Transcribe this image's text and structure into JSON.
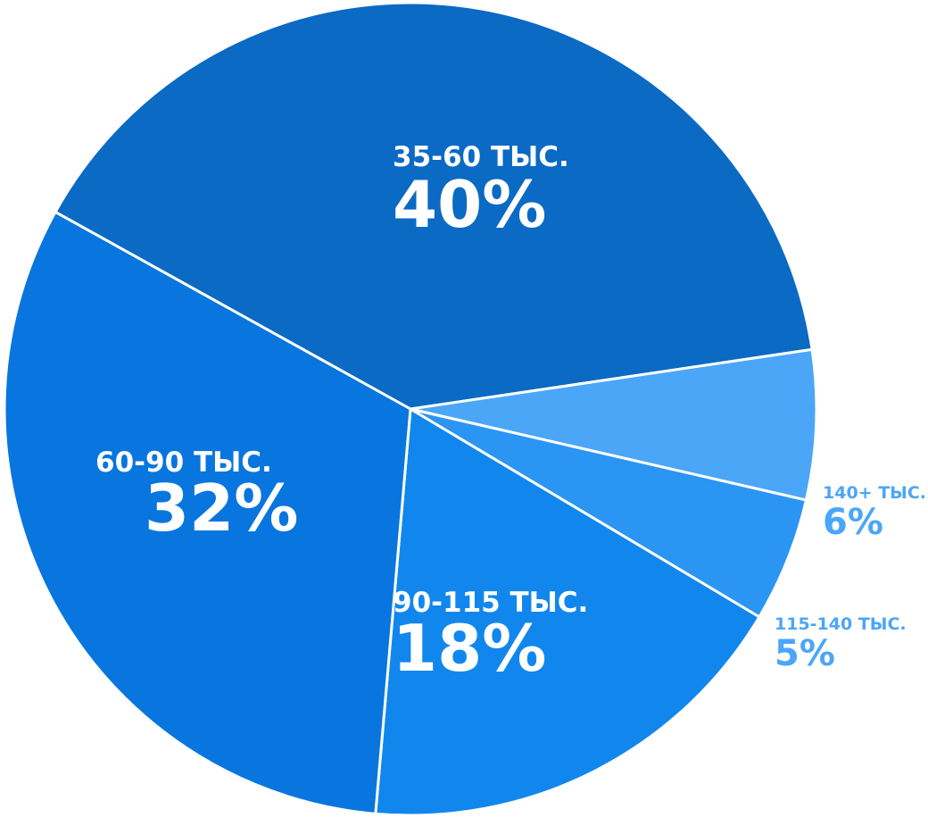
{
  "chart_data": {
    "type": "pie",
    "slices": [
      {
        "label": "35-60 ТЫС.",
        "value": 40,
        "value_label": "40%",
        "color": "#0a6ac4"
      },
      {
        "label": "140+ ТЫС.",
        "value": 6,
        "value_label": "6%",
        "color": "#4ba6f8"
      },
      {
        "label": "115-140 ТЫС.",
        "value": 5,
        "value_label": "5%",
        "color": "#2b95f4"
      },
      {
        "label": "90-115 ТЫС.",
        "value": 18,
        "value_label": "18%",
        "color": "#1187ee"
      },
      {
        "label": "60-90 ТЫС.",
        "value": 32,
        "value_label": "32%",
        "color": "#0876de"
      }
    ],
    "start_angle_deg": -151,
    "direction": "clockwise",
    "label_color_inside": "#ffffff",
    "label_color_outside": "#4ba6f8"
  }
}
